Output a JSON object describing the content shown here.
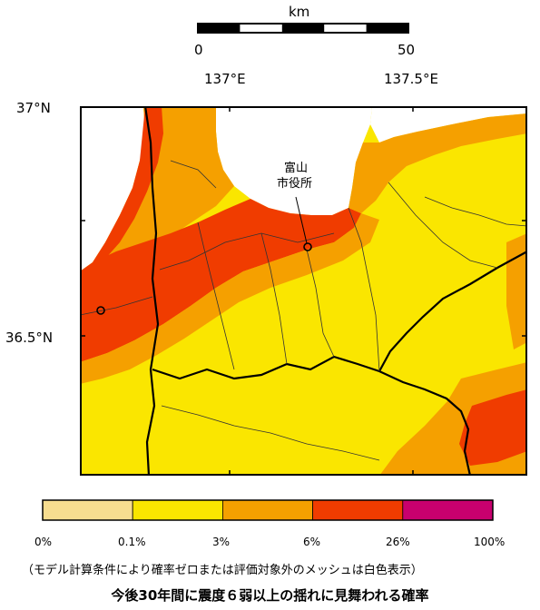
{
  "scale_bar": {
    "unit": "km",
    "min_label": "0",
    "max_label": "50"
  },
  "longitude_labels": [
    "137°E",
    "137.5°E"
  ],
  "latitude_labels": [
    "37°N",
    "36.5°N"
  ],
  "map": {
    "city_label_line1": "富山",
    "city_label_line2": "市役所",
    "colors": {
      "lt_01": "#f7dd8f",
      "01_3": "#fae600",
      "3_6": "#f5a000",
      "6_26": "#f03c00",
      "26_100": "#c8006e",
      "sea": "#ffffff",
      "outside": "#ffffff"
    }
  },
  "legend": {
    "boundaries": [
      "0%",
      "0.1%",
      "3%",
      "6%",
      "26%",
      "100%"
    ],
    "classes": [
      {
        "color": "#f7dd8f"
      },
      {
        "color": "#fae600"
      },
      {
        "color": "#f5a000"
      },
      {
        "color": "#f03c00"
      },
      {
        "color": "#c8006e"
      }
    ]
  },
  "note": "（モデル計算条件により確率ゼロまたは評価対象外のメッシュは白色表示）",
  "caption": "今後30年間に震度６弱以上の揺れに見舞われる確率"
}
